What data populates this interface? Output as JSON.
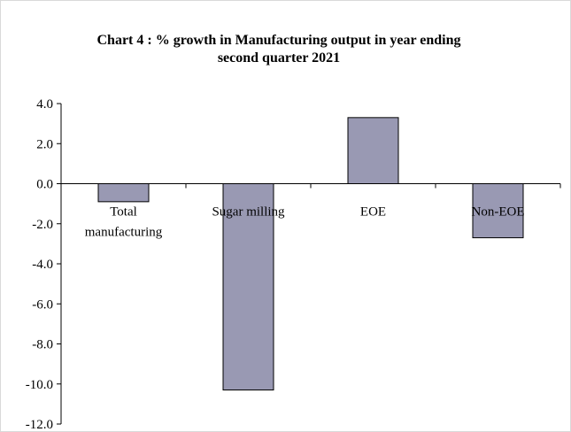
{
  "chart_data": {
    "type": "bar",
    "title_line1": "Chart 4 : % growth in Manufacturing output in year  ending",
    "title_line2": "second quarter 2021",
    "categories": [
      [
        "Total",
        "manufacturing"
      ],
      [
        "Sugar milling"
      ],
      [
        "EOE"
      ],
      [
        "Non-EOE"
      ]
    ],
    "values": [
      -0.9,
      -10.3,
      3.3,
      -2.7
    ],
    "ylim": [
      -12.0,
      4.0
    ],
    "yticks": [
      "4.0",
      "2.0",
      "0.0",
      "-2.0",
      "-4.0",
      "-6.0",
      "-8.0",
      "-10.0",
      "-12.0"
    ],
    "ytick_values": [
      4,
      2,
      0,
      -2,
      -4,
      -6,
      -8,
      -10,
      -12
    ],
    "grid": false,
    "legend": "none",
    "bar_color": "#9999b3",
    "bar_edge_color": "#000000"
  }
}
